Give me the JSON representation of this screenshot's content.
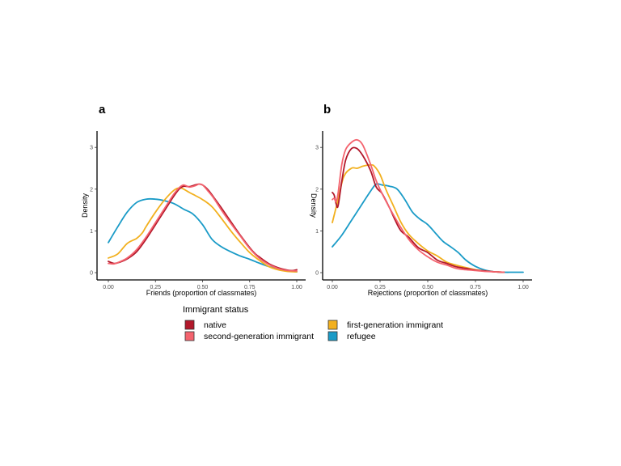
{
  "chart_data": [
    {
      "type": "line",
      "subtype": "density",
      "panel_label": "a",
      "title": "",
      "xlabel": "Friends (proportion of classmates)",
      "ylabel": "Density",
      "xlim": [
        0,
        1
      ],
      "ylim": [
        0,
        3.3
      ],
      "x_ticks": [
        "0.00",
        "0.25",
        "0.50",
        "0.75",
        "1.00"
      ],
      "y_ticks": [
        "0",
        "1",
        "2",
        "3"
      ],
      "grid": false,
      "series": [
        {
          "name": "native",
          "x": [
            0.0,
            0.03,
            0.06,
            0.1,
            0.15,
            0.2,
            0.25,
            0.3,
            0.35,
            0.38,
            0.4,
            0.43,
            0.46,
            0.48,
            0.5,
            0.53,
            0.56,
            0.6,
            0.65,
            0.7,
            0.75,
            0.78,
            0.8,
            0.85,
            0.9,
            0.95,
            0.98,
            1.0
          ],
          "y": [
            0.27,
            0.22,
            0.25,
            0.33,
            0.5,
            0.8,
            1.15,
            1.5,
            1.85,
            2.02,
            2.07,
            2.06,
            2.1,
            2.12,
            2.1,
            1.98,
            1.8,
            1.55,
            1.22,
            0.9,
            0.6,
            0.45,
            0.38,
            0.22,
            0.12,
            0.06,
            0.05,
            0.07
          ]
        },
        {
          "name": "second-generation immigrant",
          "x": [
            0.0,
            0.03,
            0.06,
            0.1,
            0.15,
            0.2,
            0.25,
            0.3,
            0.35,
            0.38,
            0.4,
            0.43,
            0.46,
            0.48,
            0.5,
            0.53,
            0.56,
            0.6,
            0.65,
            0.7,
            0.75,
            0.8,
            0.85,
            0.9,
            0.95,
            1.0
          ],
          "y": [
            0.22,
            0.21,
            0.26,
            0.35,
            0.55,
            0.85,
            1.2,
            1.55,
            1.9,
            2.05,
            2.1,
            2.05,
            2.08,
            2.12,
            2.1,
            1.95,
            1.78,
            1.5,
            1.18,
            0.88,
            0.58,
            0.35,
            0.2,
            0.1,
            0.05,
            0.04
          ]
        },
        {
          "name": "first-generation immigrant",
          "x": [
            0.0,
            0.05,
            0.1,
            0.15,
            0.18,
            0.2,
            0.25,
            0.3,
            0.35,
            0.38,
            0.4,
            0.43,
            0.46,
            0.5,
            0.55,
            0.6,
            0.65,
            0.7,
            0.75,
            0.8,
            0.85,
            0.9,
            0.95,
            1.0
          ],
          "y": [
            0.35,
            0.45,
            0.7,
            0.82,
            0.95,
            1.1,
            1.45,
            1.75,
            1.98,
            2.03,
            2.0,
            1.92,
            1.85,
            1.75,
            1.58,
            1.3,
            1.0,
            0.73,
            0.48,
            0.3,
            0.15,
            0.07,
            0.03,
            0.02
          ]
        },
        {
          "name": "refugee",
          "x": [
            0.0,
            0.05,
            0.1,
            0.15,
            0.2,
            0.25,
            0.3,
            0.35,
            0.4,
            0.45,
            0.5,
            0.55,
            0.6,
            0.65,
            0.7,
            0.75,
            0.8,
            0.85,
            0.9,
            0.95,
            1.0
          ],
          "y": [
            0.72,
            1.1,
            1.45,
            1.68,
            1.76,
            1.76,
            1.72,
            1.65,
            1.52,
            1.4,
            1.15,
            0.8,
            0.62,
            0.5,
            0.4,
            0.32,
            0.23,
            0.15,
            0.09,
            0.05,
            0.02
          ]
        }
      ]
    },
    {
      "type": "line",
      "subtype": "density",
      "panel_label": "b",
      "title": "",
      "xlabel": "Rejections (proportion of classmates)",
      "ylabel": "Density",
      "xlim": [
        0,
        1
      ],
      "ylim": [
        0,
        3.3
      ],
      "x_ticks": [
        "0.00",
        "0.25",
        "0.50",
        "0.75",
        "1.00"
      ],
      "y_ticks": [
        "0",
        "1",
        "2",
        "3"
      ],
      "grid": false,
      "series": [
        {
          "name": "native",
          "x": [
            0.0,
            0.01,
            0.02,
            0.03,
            0.05,
            0.07,
            0.1,
            0.13,
            0.16,
            0.2,
            0.23,
            0.26,
            0.3,
            0.33,
            0.36,
            0.4,
            0.45,
            0.5,
            0.55,
            0.6,
            0.65,
            0.7,
            0.75,
            0.8,
            0.85,
            0.9
          ],
          "y": [
            1.92,
            1.85,
            1.65,
            1.6,
            2.2,
            2.7,
            2.97,
            2.97,
            2.8,
            2.45,
            2.05,
            1.9,
            1.55,
            1.25,
            1.0,
            0.85,
            0.6,
            0.48,
            0.3,
            0.22,
            0.14,
            0.1,
            0.06,
            0.04,
            0.02,
            0.01
          ]
        },
        {
          "name": "second-generation immigrant",
          "x": [
            0.0,
            0.01,
            0.02,
            0.03,
            0.05,
            0.07,
            0.1,
            0.13,
            0.16,
            0.2,
            0.23,
            0.26,
            0.3,
            0.35,
            0.4,
            0.45,
            0.5,
            0.55,
            0.6,
            0.65,
            0.7,
            0.75,
            0.8,
            0.85,
            0.9
          ],
          "y": [
            1.75,
            1.78,
            1.7,
            1.9,
            2.6,
            2.95,
            3.12,
            3.18,
            3.05,
            2.6,
            2.2,
            1.9,
            1.55,
            1.15,
            0.8,
            0.55,
            0.38,
            0.25,
            0.18,
            0.1,
            0.07,
            0.05,
            0.03,
            0.02,
            0.01
          ]
        },
        {
          "name": "first-generation immigrant",
          "x": [
            0.0,
            0.03,
            0.06,
            0.1,
            0.13,
            0.16,
            0.2,
            0.22,
            0.25,
            0.28,
            0.32,
            0.36,
            0.4,
            0.45,
            0.5,
            0.55,
            0.6,
            0.65,
            0.7,
            0.75,
            0.8,
            0.85,
            0.9
          ],
          "y": [
            1.2,
            1.75,
            2.3,
            2.5,
            2.5,
            2.55,
            2.58,
            2.55,
            2.35,
            2.0,
            1.6,
            1.2,
            0.92,
            0.7,
            0.52,
            0.4,
            0.25,
            0.18,
            0.12,
            0.07,
            0.04,
            0.02,
            0.01
          ]
        },
        {
          "name": "refugee",
          "x": [
            0.0,
            0.05,
            0.1,
            0.15,
            0.2,
            0.23,
            0.26,
            0.3,
            0.34,
            0.38,
            0.42,
            0.46,
            0.5,
            0.54,
            0.58,
            0.62,
            0.66,
            0.7,
            0.75,
            0.8,
            0.85,
            0.9,
            0.95,
            1.0
          ],
          "y": [
            0.62,
            0.9,
            1.25,
            1.6,
            1.95,
            2.12,
            2.1,
            2.07,
            2.0,
            1.75,
            1.45,
            1.28,
            1.15,
            0.95,
            0.75,
            0.62,
            0.48,
            0.3,
            0.15,
            0.06,
            0.02,
            0.01,
            0.01,
            0.01
          ]
        }
      ]
    }
  ],
  "legend": {
    "title": "Immigrant status",
    "placement": "bottom-center",
    "items": [
      {
        "label": "native",
        "color": "#B2182B"
      },
      {
        "label": "second-generation immigrant",
        "color": "#F4636E"
      },
      {
        "label": "first-generation immigrant",
        "color": "#F2B01E"
      },
      {
        "label": "refugee",
        "color": "#1A9BC7"
      }
    ]
  },
  "colors": {
    "native": "#B2182B",
    "second-generation immigrant": "#F4636E",
    "first-generation immigrant": "#F2B01E",
    "refugee": "#1A9BC7"
  }
}
